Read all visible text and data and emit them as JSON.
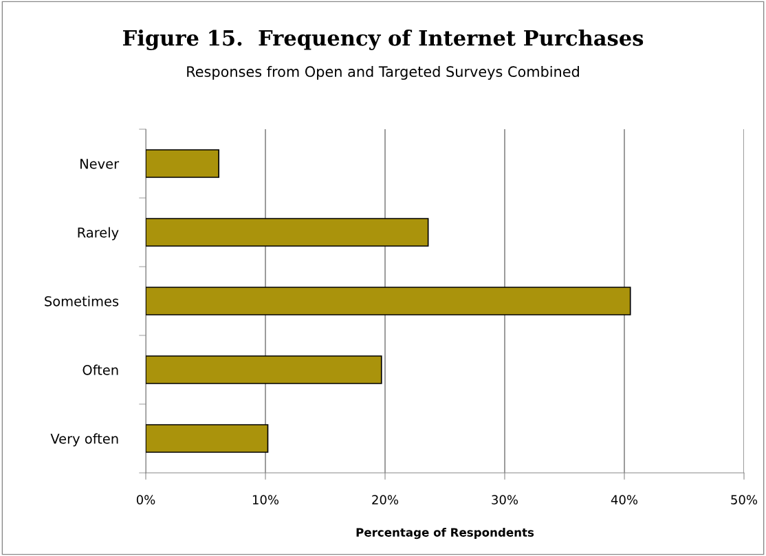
{
  "chart_data": {
    "type": "bar",
    "orientation": "horizontal",
    "title": "Figure 15.  Frequency of Internet Purchases",
    "subtitle": "Responses from Open and Targeted Surveys Combined",
    "xlabel": "Percentage of Respondents",
    "categories": [
      "Never",
      "Rarely",
      "Sometimes",
      "Often",
      "Very often"
    ],
    "values": [
      6.1,
      23.6,
      40.5,
      19.7,
      10.2
    ],
    "color": "#aa930c",
    "xlim": [
      0,
      50
    ],
    "xticks": [
      {
        "value": 0,
        "label": "0%"
      },
      {
        "value": 10,
        "label": "10%"
      },
      {
        "value": 20,
        "label": "20%"
      },
      {
        "value": 30,
        "label": "30%"
      },
      {
        "value": 40,
        "label": "40%"
      },
      {
        "value": 50,
        "label": "50%"
      }
    ],
    "grid": "x"
  }
}
